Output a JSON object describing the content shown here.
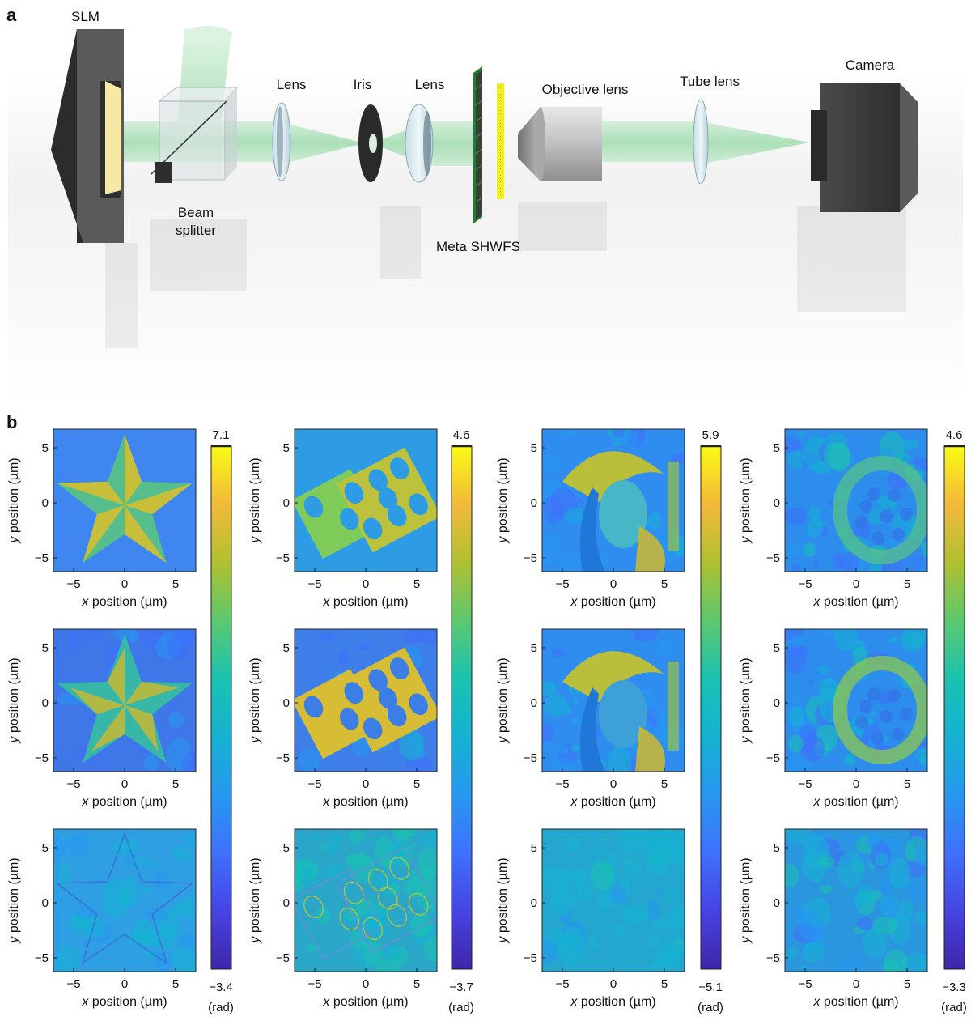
{
  "panel_a": {
    "letter": "a",
    "labels": {
      "slm": "SLM",
      "beam_splitter_1": "Beam",
      "beam_splitter_2": "splitter",
      "lens_1": "Lens",
      "iris": "Iris",
      "lens_2": "Lens",
      "meta_shwfs": "Meta SHWFS",
      "objective_lens": "Objective lens",
      "tube_lens": "Tube lens",
      "camera": "Camera"
    }
  },
  "panel_b": {
    "letter": "b",
    "x_ticks": [
      "−5",
      "0",
      "5"
    ],
    "y_ticks": [
      "5",
      "0",
      "−5"
    ],
    "xlabel_var": "x",
    "xlabel_rest": " position (µm)",
    "ylabel_var": "y",
    "ylabel_rest": " position (µm)",
    "unit": "(rad)",
    "colormap": [
      "#3e26a8",
      "#4744e4",
      "#3f70fc",
      "#2798f0",
      "#15b2d2",
      "#1ac2b0",
      "#5dc86e",
      "#b0c030",
      "#f3b93a",
      "#f9fb15"
    ],
    "columns": [
      {
        "subject": "star",
        "cb_max": "7.1",
        "cb_min": "−3.4"
      },
      {
        "subject": "dice",
        "cb_max": "4.6",
        "cb_min": "−3.7"
      },
      {
        "subject": "portrait",
        "cb_max": "5.9",
        "cb_min": "−5.1"
      },
      {
        "subject": "tissue",
        "cb_max": "4.6",
        "cb_min": "−3.3"
      }
    ]
  }
}
